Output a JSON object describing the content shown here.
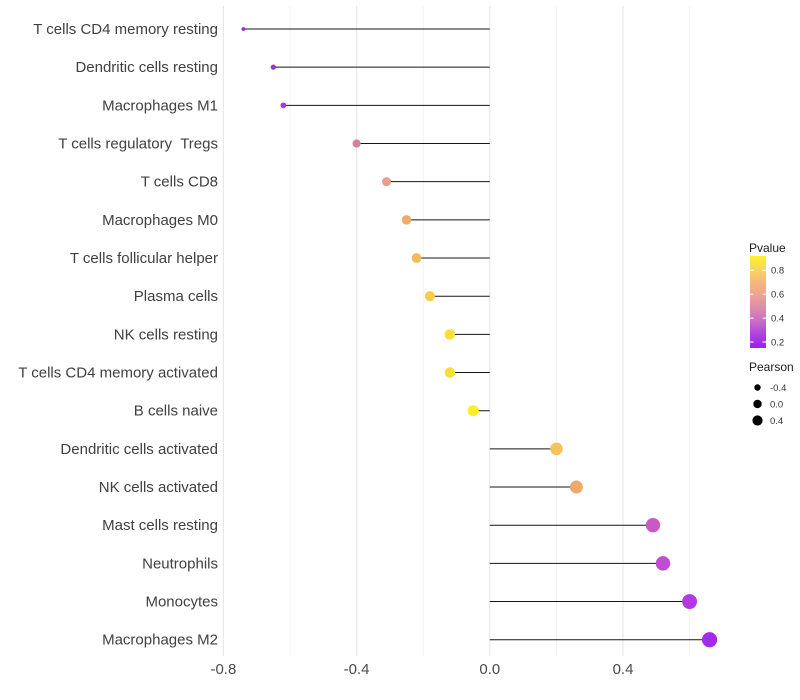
{
  "chart_data": {
    "type": "scatter",
    "subtype": "lollipop",
    "title": "",
    "xlabel": "",
    "ylabel": "",
    "baseline_x": 0,
    "xlim": [
      -0.84,
      0.73
    ],
    "x_major_ticks": [
      {
        "v": -0.8,
        "label": "-0.8"
      },
      {
        "v": -0.4,
        "label": "-0.4"
      },
      {
        "v": 0.0,
        "label": "0.0"
      },
      {
        "v": 0.4,
        "label": "0.4"
      }
    ],
    "x_minor_ticks": [
      -0.6,
      -0.2,
      0.2,
      0.6
    ],
    "grid": "vertical major and minor, no horizontal, no panel border",
    "points": [
      {
        "label": "T cells CD4 memory resting",
        "pearson": -0.74,
        "pvalue": 0.15,
        "color": "#9a2bd6"
      },
      {
        "label": "Dendritic cells resting",
        "pearson": -0.65,
        "pvalue": 0.2,
        "color": "#9c35cd"
      },
      {
        "label": "Macrophages M1",
        "pearson": -0.62,
        "pvalue": 0.24,
        "color": "#a73bd3"
      },
      {
        "label": "T cells regulatory  Tregs",
        "pearson": -0.4,
        "pvalue": 0.5,
        "color": "#d6809f"
      },
      {
        "label": "T cells CD8",
        "pearson": -0.31,
        "pvalue": 0.58,
        "color": "#e89e88"
      },
      {
        "label": "Macrophages M0",
        "pearson": -0.25,
        "pvalue": 0.66,
        "color": "#f0ac64"
      },
      {
        "label": "T cells follicular helper",
        "pearson": -0.22,
        "pvalue": 0.7,
        "color": "#f2ba58"
      },
      {
        "label": "Plasma cells",
        "pearson": -0.18,
        "pvalue": 0.74,
        "color": "#f5cd48"
      },
      {
        "label": "NK cells resting",
        "pearson": -0.12,
        "pvalue": 0.8,
        "color": "#f8df3b"
      },
      {
        "label": "T cells CD4 memory activated",
        "pearson": -0.12,
        "pvalue": 0.8,
        "color": "#f8df3b"
      },
      {
        "label": "B cells naive",
        "pearson": -0.05,
        "pvalue": 0.9,
        "color": "#fbee22"
      },
      {
        "label": "Dendritic cells activated",
        "pearson": 0.2,
        "pvalue": 0.71,
        "color": "#f3c35d"
      },
      {
        "label": "NK cells activated",
        "pearson": 0.26,
        "pvalue": 0.66,
        "color": "#efaa6b"
      },
      {
        "label": "Mast cells resting",
        "pearson": 0.49,
        "pvalue": 0.36,
        "color": "#c85ac5"
      },
      {
        "label": "Neutrophils",
        "pearson": 0.52,
        "pvalue": 0.31,
        "color": "#c04ed4"
      },
      {
        "label": "Monocytes",
        "pearson": 0.6,
        "pvalue": 0.26,
        "color": "#b13ae2"
      },
      {
        "label": "Macrophages M2",
        "pearson": 0.66,
        "pvalue": 0.21,
        "color": "#a62ae9"
      }
    ],
    "legends": {
      "pvalue": {
        "title": "Pvalue",
        "tick_labels": [
          "0.8",
          "0.6",
          "0.4",
          "0.2"
        ],
        "tick_values": [
          0.8,
          0.6,
          0.4,
          0.2
        ],
        "range": [
          0.15,
          0.92
        ],
        "gradient_top_to_bottom": [
          "#fcf227",
          "#f8d75c",
          "#f4b97b",
          "#eda394",
          "#dd8bab",
          "#c76cc8",
          "#ae40e0",
          "#9b20ee"
        ]
      },
      "pearson": {
        "title": "Pearson",
        "tick_labels": [
          "-0.4",
          "0.0",
          "0.4"
        ],
        "tick_values": [
          -0.4,
          0.0,
          0.4
        ],
        "dot_color": "#000000"
      }
    },
    "style_colors": {
      "axis_text": "#404040",
      "legend_title_text": "#1a1a1a",
      "legend_tick_text": "#333333",
      "stem": "#151515",
      "grid_major": "#e7e7e7",
      "grid_minor": "#f2f2f2",
      "background": "#ffffff"
    }
  }
}
